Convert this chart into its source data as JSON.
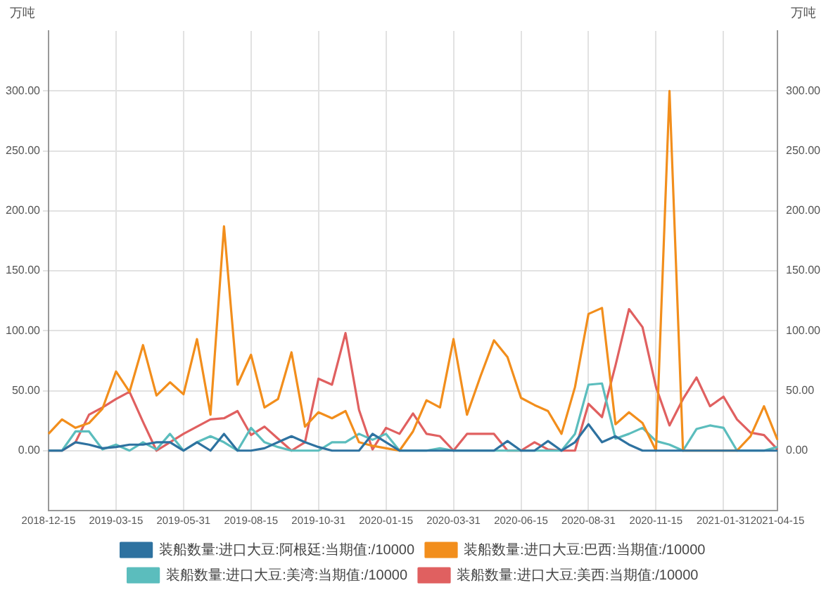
{
  "chart_data": {
    "type": "line",
    "ylabel": "万吨",
    "y2label": "万吨",
    "categories": [
      "2018-12-15",
      null,
      null,
      null,
      null,
      "2019-03-15",
      null,
      null,
      null,
      null,
      "2019-05-31",
      null,
      null,
      null,
      null,
      "2019-08-15",
      null,
      null,
      null,
      null,
      "2019-10-31",
      null,
      null,
      null,
      null,
      "2020-01-15",
      null,
      null,
      null,
      null,
      "2020-03-31",
      null,
      null,
      null,
      null,
      "2020-06-15",
      null,
      null,
      null,
      null,
      "2020-08-31",
      null,
      null,
      null,
      null,
      "2020-11-15",
      null,
      null,
      null,
      null,
      "2021-01-31",
      null,
      null,
      null,
      "2021-04-15"
    ],
    "series": [
      {
        "name": "装船数量:进口大豆:阿根廷:当期值:/10000",
        "color": "#2e72a0",
        "values": [
          0,
          0,
          7,
          5,
          2,
          3,
          5,
          5,
          7,
          7,
          0,
          7,
          0,
          14,
          0,
          0,
          2,
          7,
          12,
          7,
          3,
          0,
          0,
          0,
          14,
          7,
          0,
          0,
          0,
          0,
          0,
          0,
          0,
          0,
          8,
          0,
          0,
          8,
          0,
          7,
          22,
          7,
          12,
          5,
          0,
          0,
          0,
          0,
          0,
          0,
          0,
          0,
          0,
          0,
          0
        ]
      },
      {
        "name": "装船数量:进口大豆:巴西:当期值:/10000",
        "color": "#f28e1c",
        "values": [
          14,
          26,
          19,
          23,
          35,
          66,
          49,
          88,
          46,
          57,
          47,
          93,
          30,
          187,
          55,
          80,
          36,
          43,
          82,
          20,
          32,
          27,
          33,
          7,
          4,
          2,
          0,
          16,
          42,
          36,
          93,
          30,
          62,
          92,
          78,
          44,
          38,
          33,
          14,
          53,
          114,
          119,
          22,
          32,
          23,
          0,
          300,
          0,
          0,
          0,
          0,
          0,
          12,
          37,
          9
        ]
      },
      {
        "name": "装船数量:进口大豆:美湾:当期值:/10000",
        "color": "#5bbdbd",
        "values": [
          0,
          0,
          16,
          16,
          1,
          5,
          0,
          7,
          1,
          14,
          0,
          7,
          12,
          7,
          0,
          19,
          7,
          3,
          0,
          0,
          0,
          7,
          7,
          14,
          9,
          14,
          0,
          0,
          0,
          2,
          0,
          0,
          0,
          0,
          0,
          0,
          0,
          0,
          0,
          14,
          55,
          56,
          10,
          14,
          19,
          8,
          5,
          0,
          18,
          21,
          19,
          0,
          0,
          0,
          3
        ]
      },
      {
        "name": "装船数量:进口大豆:美西:当期值:/10000",
        "color": "#e06060",
        "values": [
          0,
          0,
          7,
          30,
          36,
          43,
          49,
          24,
          0,
          7,
          14,
          20,
          26,
          27,
          33,
          13,
          20,
          10,
          0,
          7,
          60,
          55,
          98,
          34,
          1,
          19,
          14,
          31,
          14,
          12,
          0,
          14,
          14,
          14,
          0,
          0,
          7,
          1,
          0,
          0,
          39,
          28,
          71,
          118,
          103,
          53,
          21,
          43,
          61,
          37,
          45,
          26,
          15,
          13,
          1
        ]
      }
    ],
    "ylim": [
      -50,
      350
    ],
    "yticks": [
      {
        "value": 0,
        "label": "0.00"
      },
      {
        "value": 50,
        "label": "50.00"
      },
      {
        "value": 100,
        "label": "100.00"
      },
      {
        "value": 150,
        "label": "150.00"
      },
      {
        "value": 200,
        "label": "200.00"
      },
      {
        "value": 250,
        "label": "250.00"
      },
      {
        "value": 300,
        "label": "300.00"
      }
    ],
    "y2lim": [
      -50,
      350
    ],
    "y2ticks": [
      {
        "value": 0,
        "label": "0.00"
      },
      {
        "value": 50,
        "label": "50.00"
      },
      {
        "value": 100,
        "label": "100.00"
      },
      {
        "value": 150,
        "label": "150.00"
      },
      {
        "value": 200,
        "label": "200.00"
      },
      {
        "value": 250,
        "label": "250.00"
      },
      {
        "value": 300,
        "label": "300.00"
      }
    ],
    "grid": true,
    "legend": "bottom",
    "marker": "none",
    "line_style": "solid"
  }
}
